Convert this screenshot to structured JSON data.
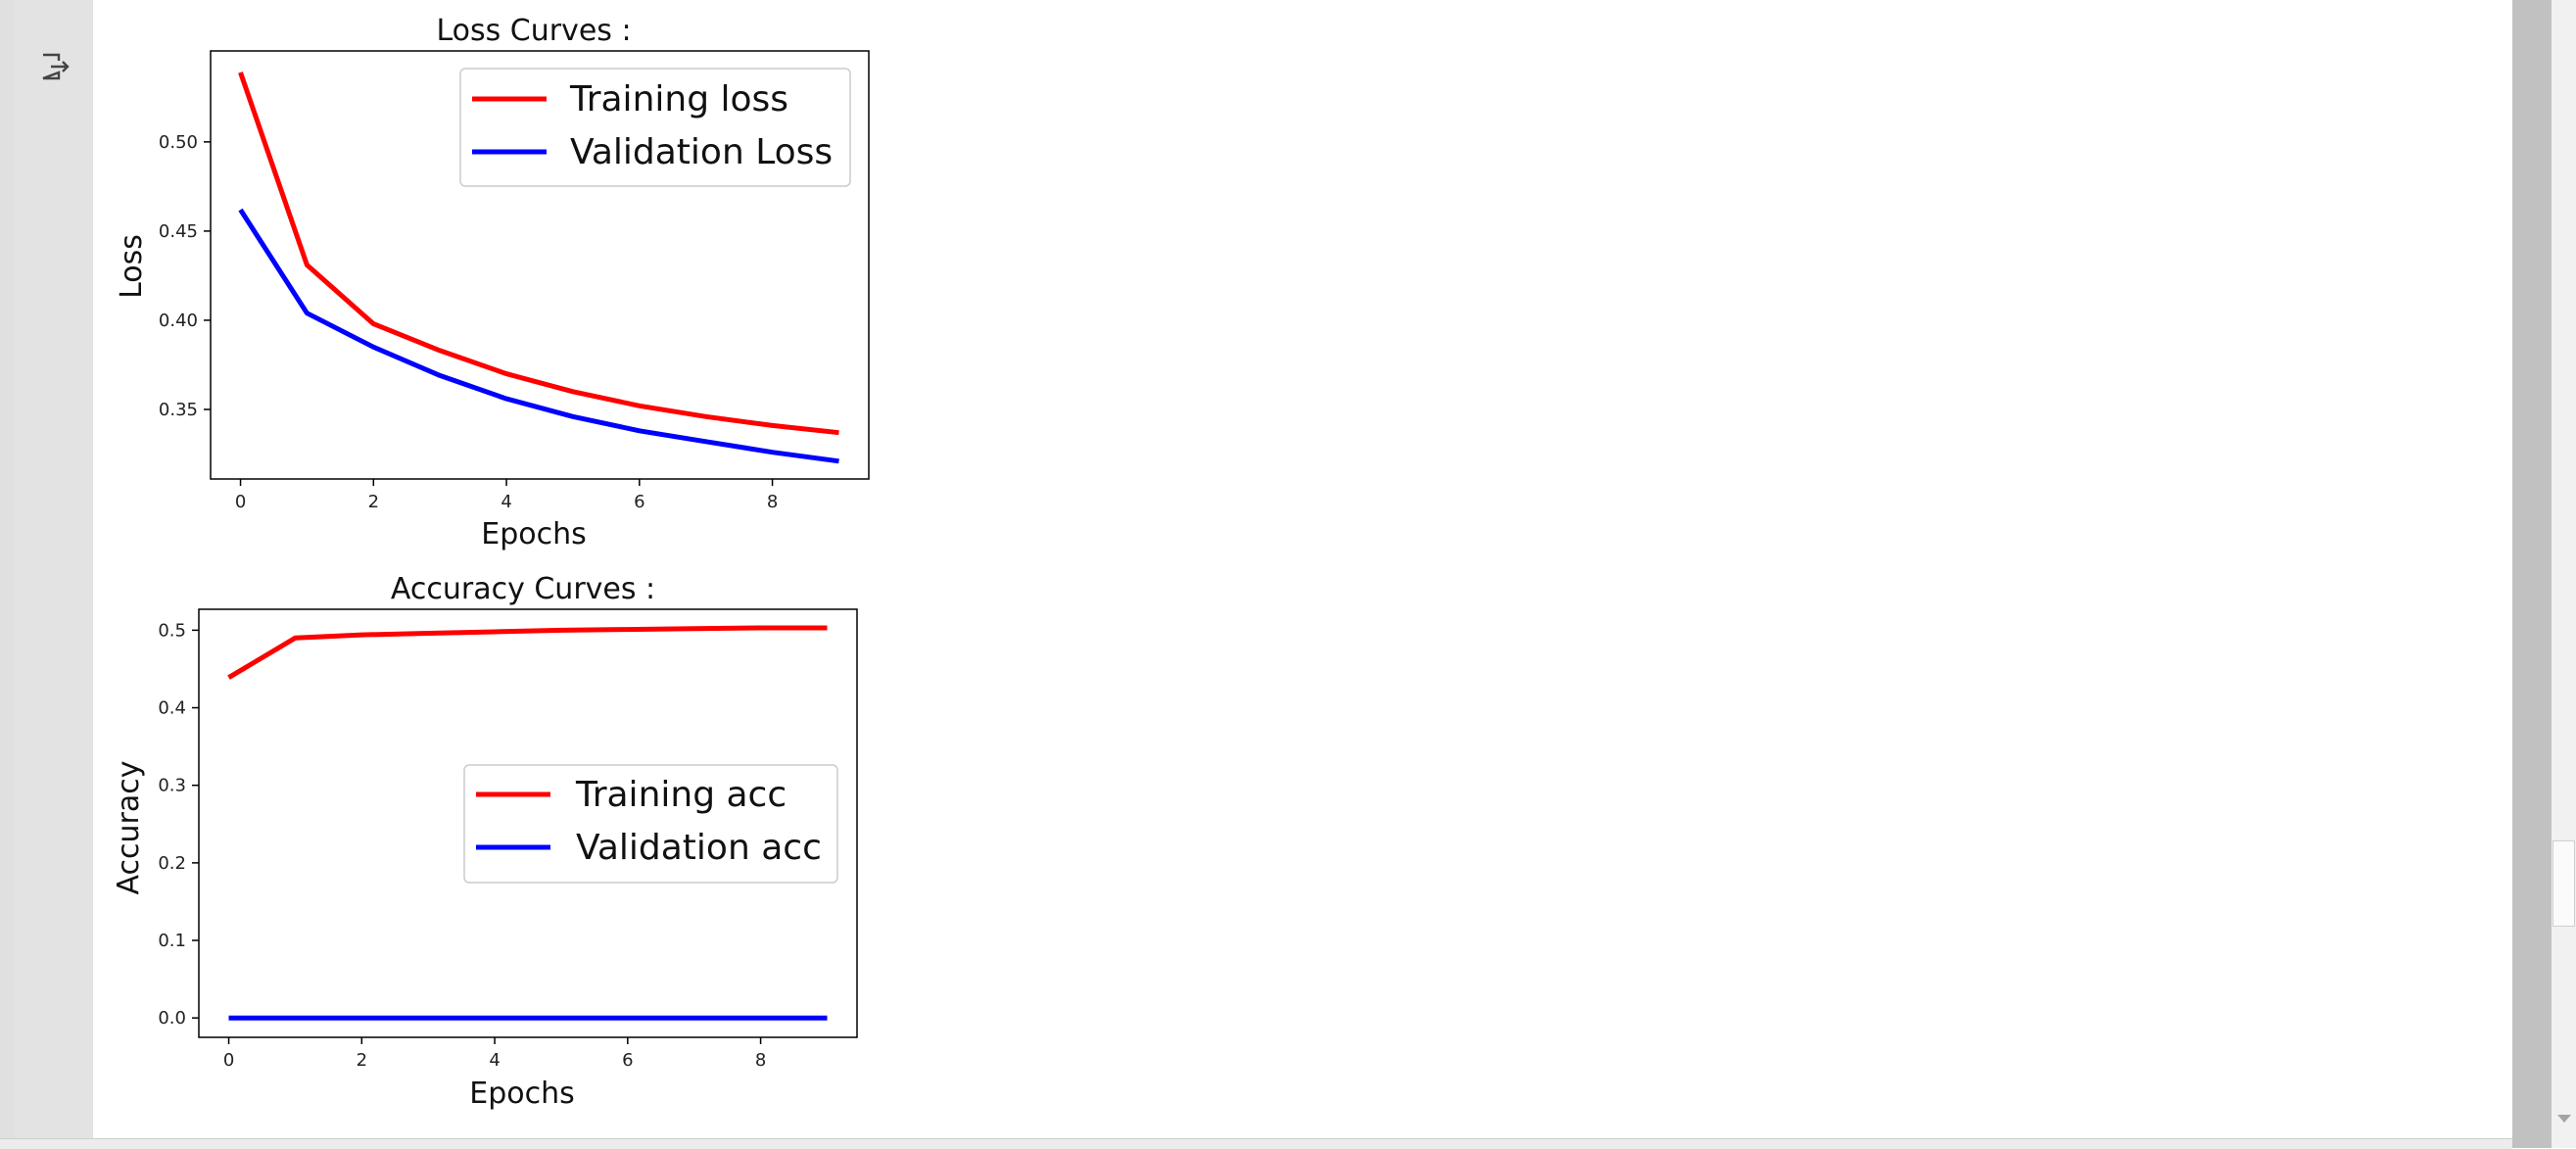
{
  "chart_data": [
    {
      "type": "line",
      "title": "Loss Curves :",
      "xlabel": "Epochs",
      "ylabel": "Loss",
      "xlim": [
        -0.45,
        9.45
      ],
      "ylim": [
        0.311,
        0.551
      ],
      "xticks": [
        0,
        2,
        4,
        6,
        8
      ],
      "yticks": [
        0.35,
        0.4,
        0.45,
        0.5
      ],
      "ytick_decimals": 2,
      "grid": false,
      "legend_position": "top-right",
      "x": [
        0,
        1,
        2,
        3,
        4,
        5,
        6,
        7,
        8,
        9
      ],
      "series": [
        {
          "name": "Training loss",
          "color": "#ff0000",
          "values": [
            0.539,
            0.431,
            0.398,
            0.383,
            0.37,
            0.36,
            0.352,
            0.346,
            0.341,
            0.337
          ]
        },
        {
          "name": "Validation Loss",
          "color": "#0000ff",
          "values": [
            0.462,
            0.404,
            0.385,
            0.369,
            0.356,
            0.346,
            0.338,
            0.332,
            0.326,
            0.321
          ]
        }
      ]
    },
    {
      "type": "line",
      "title": "Accuracy Curves :",
      "xlabel": "Epochs",
      "ylabel": "Accuracy",
      "xlim": [
        -0.45,
        9.45
      ],
      "ylim": [
        -0.025,
        0.527
      ],
      "xticks": [
        0,
        2,
        4,
        6,
        8
      ],
      "yticks": [
        0.0,
        0.1,
        0.2,
        0.3,
        0.4,
        0.5
      ],
      "ytick_decimals": 1,
      "grid": false,
      "legend_position": "center-right",
      "x": [
        0,
        1,
        2,
        3,
        4,
        5,
        6,
        7,
        8,
        9
      ],
      "series": [
        {
          "name": "Training acc",
          "color": "#ff0000",
          "values": [
            0.439,
            0.49,
            0.494,
            0.496,
            0.498,
            0.5,
            0.501,
            0.502,
            0.503,
            0.503
          ]
        },
        {
          "name": "Validation acc",
          "color": "#0000ff",
          "values": [
            0.0,
            0.0,
            0.0,
            0.0,
            0.0,
            0.0,
            0.0,
            0.0,
            0.0,
            0.0
          ]
        }
      ]
    }
  ],
  "ui": {
    "output_icon": "output-arrow-icon"
  }
}
